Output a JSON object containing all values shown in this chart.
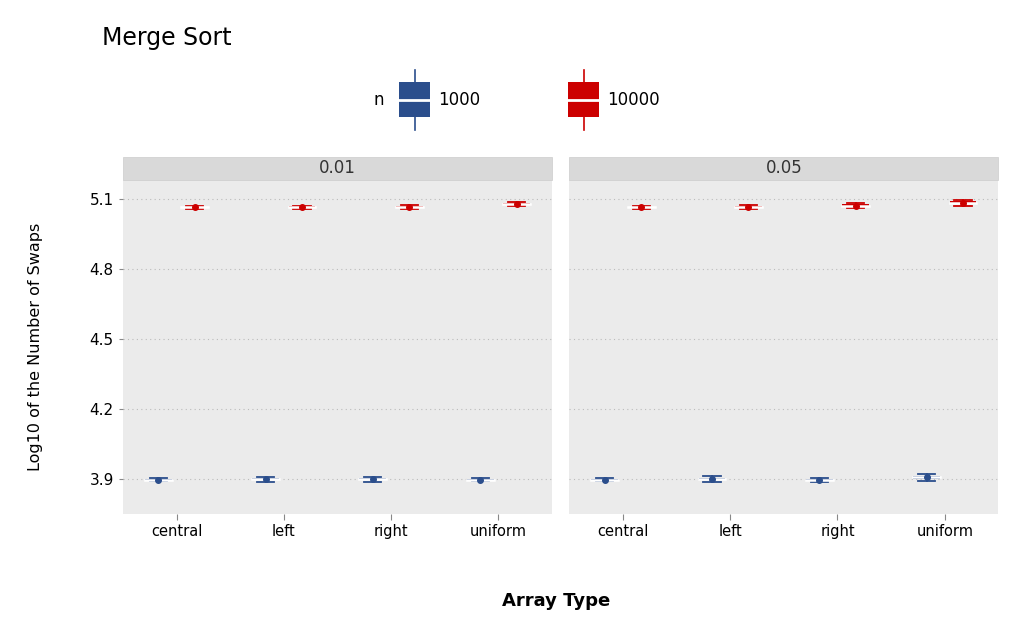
{
  "title": "Merge Sort",
  "xlabel": "Array Type",
  "ylabel": "Log10 of the Number of Swaps",
  "facets": [
    "0.01",
    "0.05"
  ],
  "categories": [
    "central",
    "left",
    "right",
    "uniform"
  ],
  "n_values": [
    "1000",
    "10000"
  ],
  "colors": {
    "1000": "#2b4e8c",
    "10000": "#cc0000"
  },
  "background_color": "#ffffff",
  "panel_bg": "#ebebeb",
  "strip_bg": "#d9d9d9",
  "grid_color": "#ffffff",
  "grid_dot_color": "#bbbbbb",
  "ylim": [
    3.75,
    5.18
  ],
  "yticks": [
    3.9,
    4.2,
    4.5,
    4.8,
    5.1
  ],
  "boxplot_data": {
    "0.01": {
      "1000": {
        "central": {
          "q1": 3.896,
          "median": 3.898,
          "q3": 3.901,
          "whislo": 3.893,
          "whishi": 3.904
        },
        "left": {
          "q1": 3.895,
          "median": 3.9,
          "q3": 3.906,
          "whislo": 3.889,
          "whishi": 3.912
        },
        "right": {
          "q1": 3.895,
          "median": 3.9,
          "q3": 3.906,
          "whislo": 3.889,
          "whishi": 3.912
        },
        "uniform": {
          "q1": 3.897,
          "median": 3.899,
          "q3": 3.902,
          "whislo": 3.894,
          "whishi": 3.905
        }
      },
      "10000": {
        "central": {
          "q1": 5.059,
          "median": 5.063,
          "q3": 5.066,
          "whislo": 5.056,
          "whishi": 5.069
        },
        "left": {
          "q1": 5.059,
          "median": 5.063,
          "q3": 5.067,
          "whislo": 5.056,
          "whishi": 5.07
        },
        "right": {
          "q1": 5.062,
          "median": 5.066,
          "q3": 5.07,
          "whislo": 5.058,
          "whishi": 5.074
        },
        "uniform": {
          "q1": 5.073,
          "median": 5.078,
          "q3": 5.083,
          "whislo": 5.068,
          "whishi": 5.088
        }
      }
    },
    "0.05": {
      "1000": {
        "central": {
          "q1": 3.896,
          "median": 3.899,
          "q3": 3.902,
          "whislo": 3.893,
          "whishi": 3.905
        },
        "left": {
          "q1": 3.895,
          "median": 3.901,
          "q3": 3.907,
          "whislo": 3.888,
          "whishi": 3.913
        },
        "right": {
          "q1": 3.895,
          "median": 3.899,
          "q3": 3.903,
          "whislo": 3.889,
          "whishi": 3.907
        },
        "uniform": {
          "q1": 3.901,
          "median": 3.908,
          "q3": 3.916,
          "whislo": 3.894,
          "whishi": 3.923
        }
      },
      "10000": {
        "central": {
          "q1": 5.059,
          "median": 5.063,
          "q3": 5.066,
          "whislo": 5.056,
          "whishi": 5.069
        },
        "left": {
          "q1": 5.062,
          "median": 5.066,
          "q3": 5.07,
          "whislo": 5.058,
          "whishi": 5.074
        },
        "right": {
          "q1": 5.066,
          "median": 5.071,
          "q3": 5.076,
          "whislo": 5.061,
          "whishi": 5.08
        },
        "uniform": {
          "q1": 5.077,
          "median": 5.083,
          "q3": 5.089,
          "whislo": 5.07,
          "whishi": 5.096
        }
      }
    }
  }
}
